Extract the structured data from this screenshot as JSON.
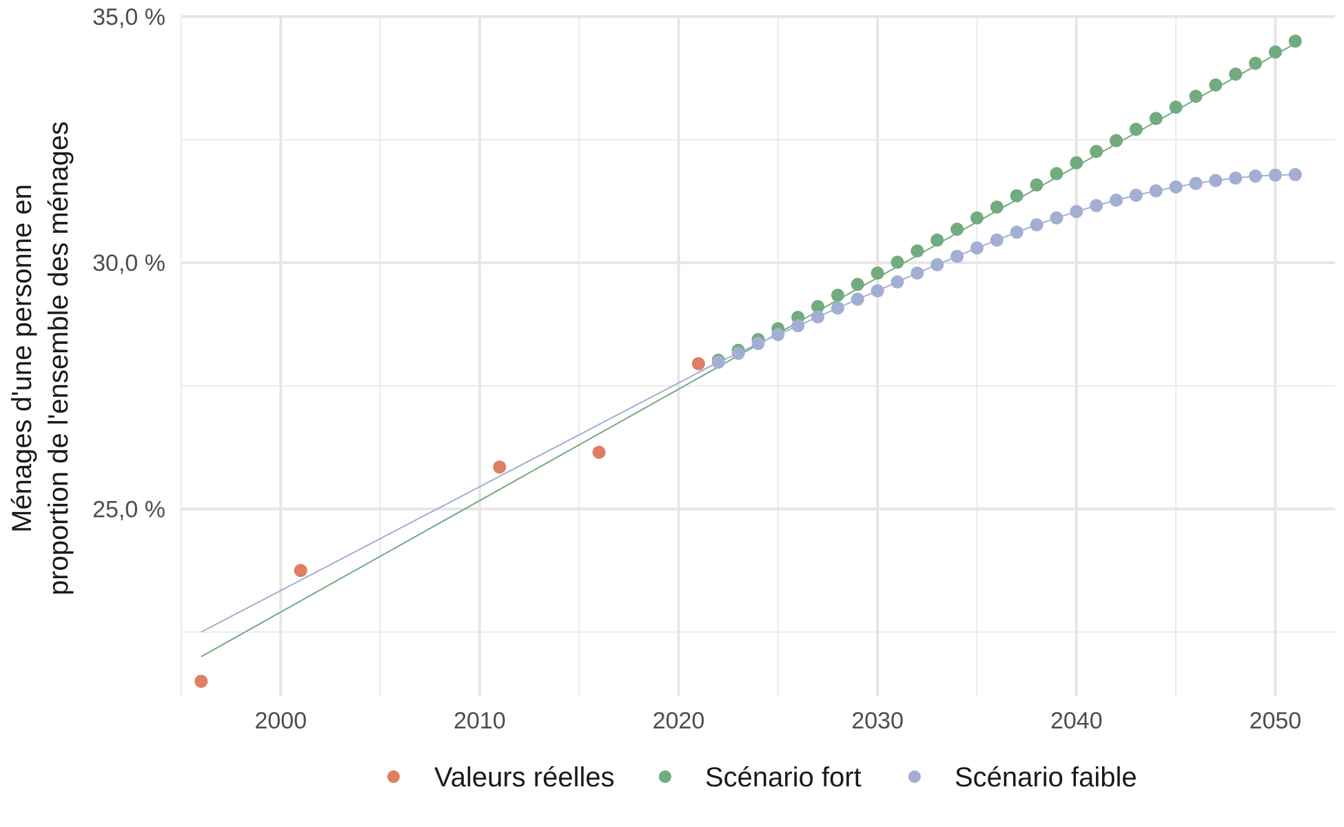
{
  "chart_data": {
    "type": "scatter",
    "ylabel_lines": [
      "Ménages d'une personne en",
      "proportion de l'ensemble des ménages"
    ],
    "xlim": [
      1995,
      2053
    ],
    "ylim": [
      21.2,
      35.0
    ],
    "x_ticks": [
      2000,
      2010,
      2020,
      2030,
      2040,
      2050
    ],
    "x_tick_labels": [
      "2000",
      "2010",
      "2020",
      "2030",
      "2040",
      "2050"
    ],
    "y_ticks": [
      25,
      30,
      35
    ],
    "y_tick_labels": [
      "25,0 %",
      "30,0 %",
      "35,0 %"
    ],
    "grid": true,
    "legend_position": "bottom",
    "series": [
      {
        "name": "Valeurs réelles",
        "color": "#e07e61",
        "x": [
          1996,
          2001,
          2011,
          2016,
          2021
        ],
        "y": [
          21.5,
          23.75,
          25.85,
          26.15,
          27.95
        ]
      },
      {
        "name": "Scénario fort",
        "color": "#72ab7e",
        "x": [
          2022,
          2023,
          2024,
          2025,
          2026,
          2027,
          2028,
          2029,
          2030,
          2031,
          2032,
          2033,
          2034,
          2035,
          2036,
          2037,
          2038,
          2039,
          2040,
          2041,
          2042,
          2043,
          2044,
          2045,
          2046,
          2047,
          2048,
          2049,
          2050,
          2051
        ],
        "y": [
          28.02,
          28.22,
          28.44,
          28.66,
          28.89,
          29.11,
          29.34,
          29.56,
          29.79,
          30.01,
          30.24,
          30.46,
          30.68,
          30.91,
          31.13,
          31.36,
          31.58,
          31.81,
          32.03,
          32.26,
          32.48,
          32.71,
          32.93,
          33.16,
          33.38,
          33.61,
          33.83,
          34.05,
          34.28,
          34.5
        ],
        "trend": {
          "x": [
            1996,
            2051
          ],
          "y": [
            22.0,
            34.45
          ]
        }
      },
      {
        "name": "Scénario faible",
        "color": "#a3aed3",
        "x": [
          2022,
          2023,
          2024,
          2025,
          2026,
          2027,
          2028,
          2029,
          2030,
          2031,
          2032,
          2033,
          2034,
          2035,
          2036,
          2037,
          2038,
          2039,
          2040,
          2041,
          2042,
          2043,
          2044,
          2045,
          2046,
          2047,
          2048,
          2049,
          2050,
          2051
        ],
        "y": [
          27.98,
          28.16,
          28.36,
          28.54,
          28.72,
          28.9,
          29.08,
          29.26,
          29.43,
          29.61,
          29.79,
          29.96,
          30.13,
          30.3,
          30.46,
          30.62,
          30.77,
          30.91,
          31.04,
          31.16,
          31.27,
          31.37,
          31.46,
          31.54,
          31.61,
          31.67,
          31.72,
          31.76,
          31.78,
          31.79
        ],
        "trend": {
          "x": [
            1996,
            2022
          ],
          "y": [
            22.5,
            27.98
          ]
        },
        "curve_start": {
          "x": 2021,
          "y": 27.78
        }
      }
    ]
  }
}
